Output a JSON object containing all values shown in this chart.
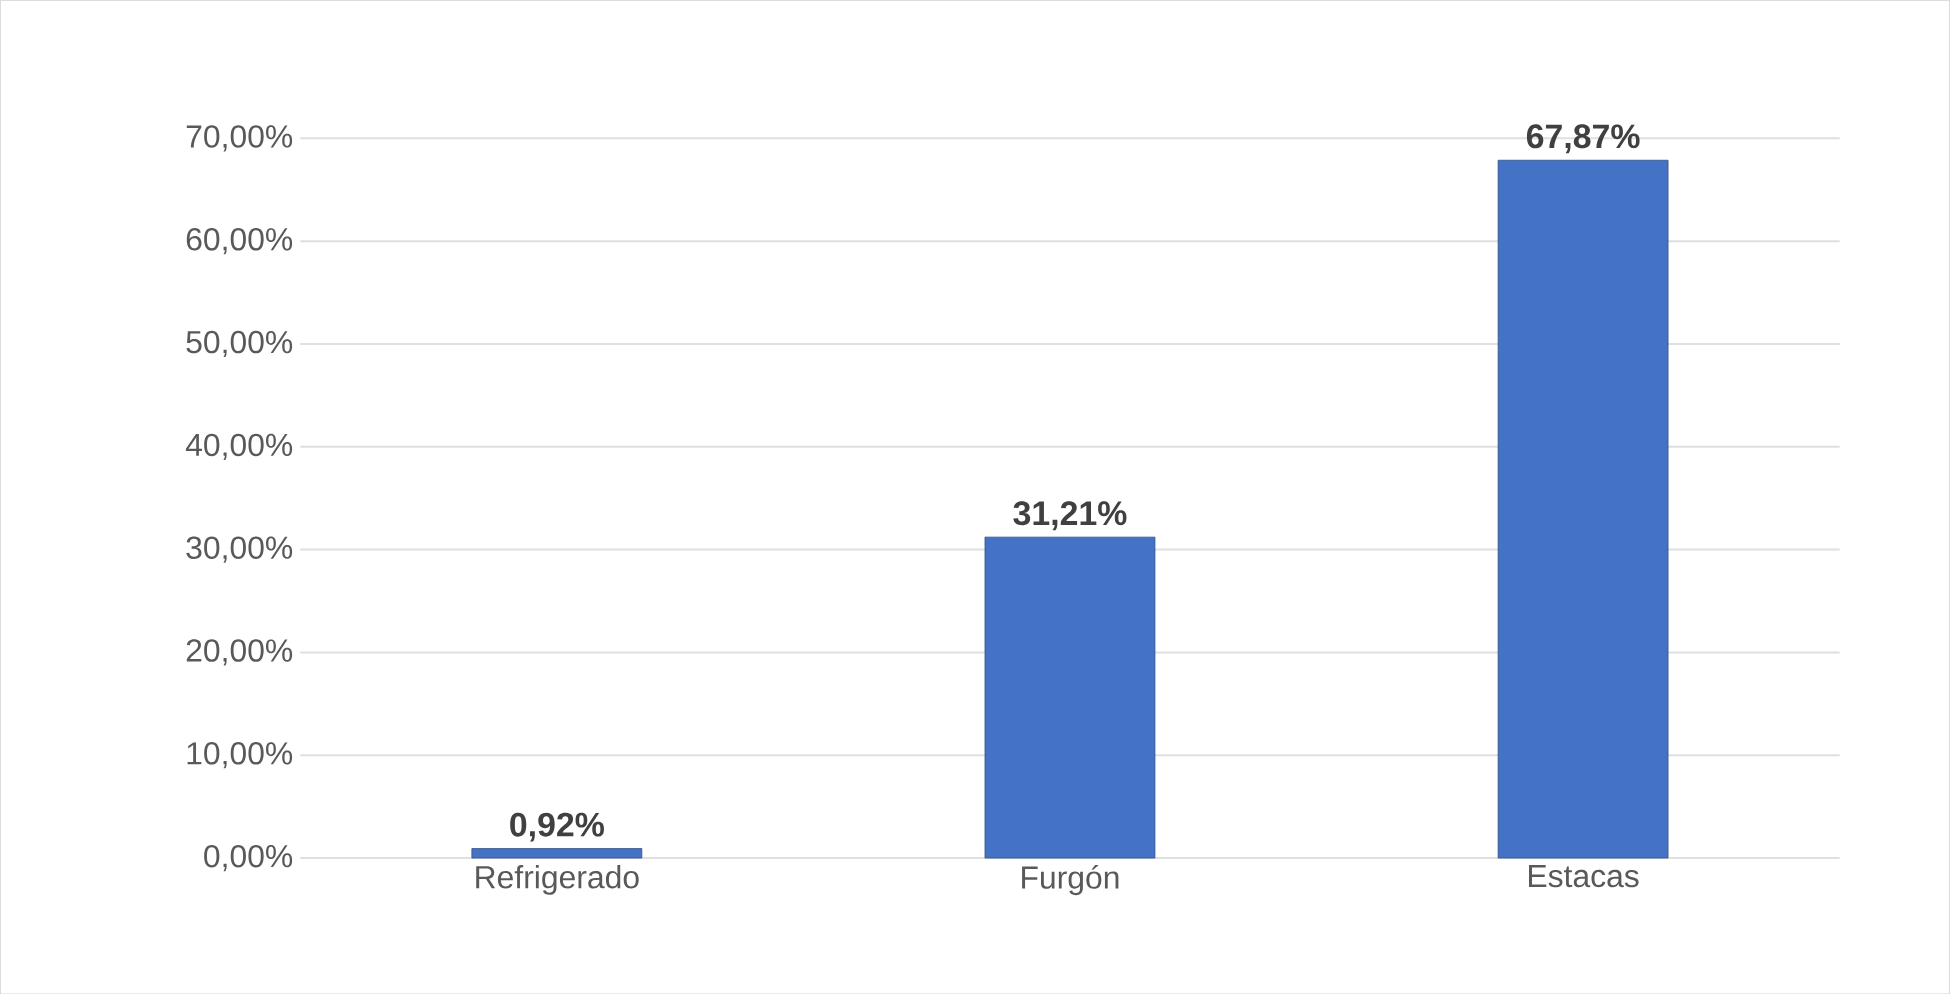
{
  "chart_data": {
    "type": "bar",
    "categories": [
      "Refrigerado",
      "Furgón",
      "Estacas"
    ],
    "values": [
      0.92,
      31.21,
      67.87
    ],
    "value_labels": [
      "0,92%",
      "31,21%",
      "67,87%"
    ],
    "color": "#4472c4",
    "ylim": [
      0,
      70
    ],
    "yticks": [
      {
        "value": 0,
        "label": "0,00%"
      },
      {
        "value": 10,
        "label": "10,00%"
      },
      {
        "value": 20,
        "label": "20,00%"
      },
      {
        "value": 30,
        "label": "30,00%"
      },
      {
        "value": 40,
        "label": "40,00%"
      },
      {
        "value": 50,
        "label": "50,00%"
      },
      {
        "value": 60,
        "label": "60,00%"
      },
      {
        "value": 70,
        "label": "70,00%"
      }
    ],
    "grid": "y"
  }
}
